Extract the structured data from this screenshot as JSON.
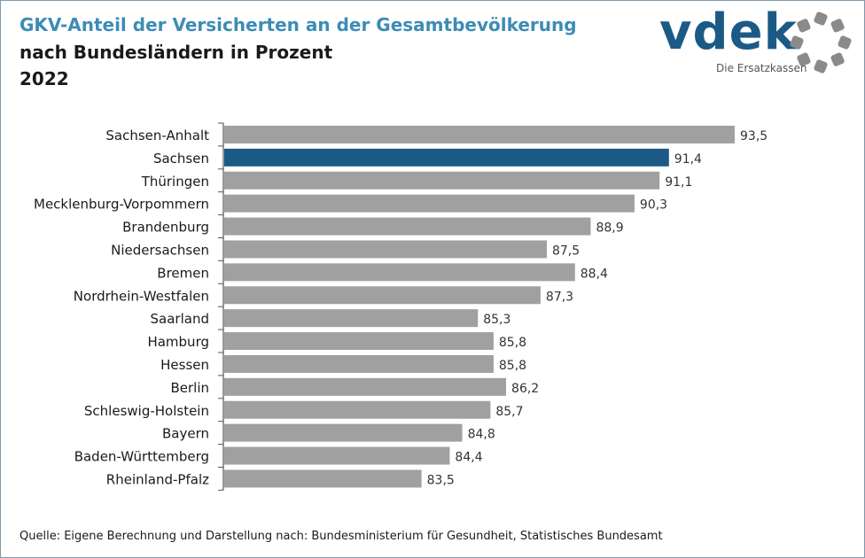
{
  "header": {
    "title": "GKV-Anteil der Versicherten an der Gesamtbevölkerung",
    "subtitle": "nach Bundesländern in Prozent",
    "year": "2022"
  },
  "logo": {
    "word": "vdek",
    "tagline": "Die Ersatzkassen",
    "brand_color": "#1c5a86",
    "ring_color": "#8a8a8a"
  },
  "footer": {
    "source": "Quelle: Eigene Berechnung und Darstellung nach: Bundesministerium für Gesundheit, Statistisches Bundesamt"
  },
  "chart_data": {
    "type": "bar",
    "orientation": "horizontal",
    "categories": [
      "Sachsen-Anhalt",
      "Sachsen",
      "Thüringen",
      "Mecklenburg-Vorpommern",
      "Brandenburg",
      "Niedersachsen",
      "Bremen",
      "Nordrhein-Westfalen",
      "Saarland",
      "Hamburg",
      "Hessen",
      "Berlin",
      "Schleswig-Holstein",
      "Bayern",
      "Baden-Württemberg",
      "Rheinland-Pfalz"
    ],
    "values": [
      93.5,
      91.4,
      91.1,
      90.3,
      88.9,
      87.5,
      88.4,
      87.3,
      85.3,
      85.8,
      85.8,
      86.2,
      85.7,
      84.8,
      84.4,
      83.5
    ],
    "value_labels": [
      "93,5",
      "91,4",
      "91,1",
      "90,3",
      "88,9",
      "87,5",
      "88,4",
      "87,3",
      "85,3",
      "85,8",
      "85,8",
      "86,2",
      "85,7",
      "84,8",
      "84,4",
      "83,5"
    ],
    "highlight_category": "Sachsen",
    "colors": {
      "default": "#a0a0a0",
      "highlight": "#1c5a86",
      "axis": "#555555"
    },
    "xlim": [
      77.2,
      93.5
    ],
    "grid": false,
    "legend": "none"
  }
}
